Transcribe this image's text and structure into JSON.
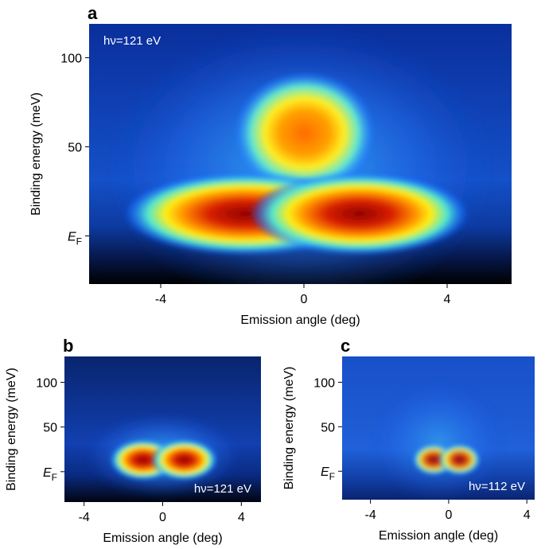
{
  "chart_data": [
    {
      "type": "heatmap",
      "panel": "a",
      "annotation": "hν=121 eV",
      "xlabel": "Emission angle (deg)",
      "ylabel": "Binding energy (meV)",
      "xlim": [
        -6,
        5.8
      ],
      "ylim": [
        -27,
        119
      ],
      "xticks": [
        -4,
        0,
        4
      ],
      "yticks": [
        {
          "value": 0,
          "label": "E",
          "subscript": "F"
        },
        50,
        100
      ]
    },
    {
      "type": "heatmap",
      "panel": "b",
      "annotation": "hν=121 eV",
      "xlabel": "Emission angle (deg)",
      "ylabel": "Binding energy (meV)",
      "xlim": [
        -5,
        5
      ],
      "ylim": [
        -34,
        129
      ],
      "xticks": [
        -4,
        0,
        4
      ],
      "yticks": [
        {
          "value": 0,
          "label": "E",
          "subscript": "F"
        },
        50,
        100
      ]
    },
    {
      "type": "heatmap",
      "panel": "c",
      "annotation": "hν=112 eV",
      "xlabel": "Emission angle (deg)",
      "ylabel": "Binding energy (meV)",
      "xlim": [
        -5.45,
        4.4
      ],
      "ylim": [
        -32,
        129
      ],
      "xticks": [
        -4,
        0,
        4
      ],
      "yticks": [
        {
          "value": 0,
          "label": "E",
          "subscript": "F"
        },
        50,
        100
      ]
    }
  ]
}
